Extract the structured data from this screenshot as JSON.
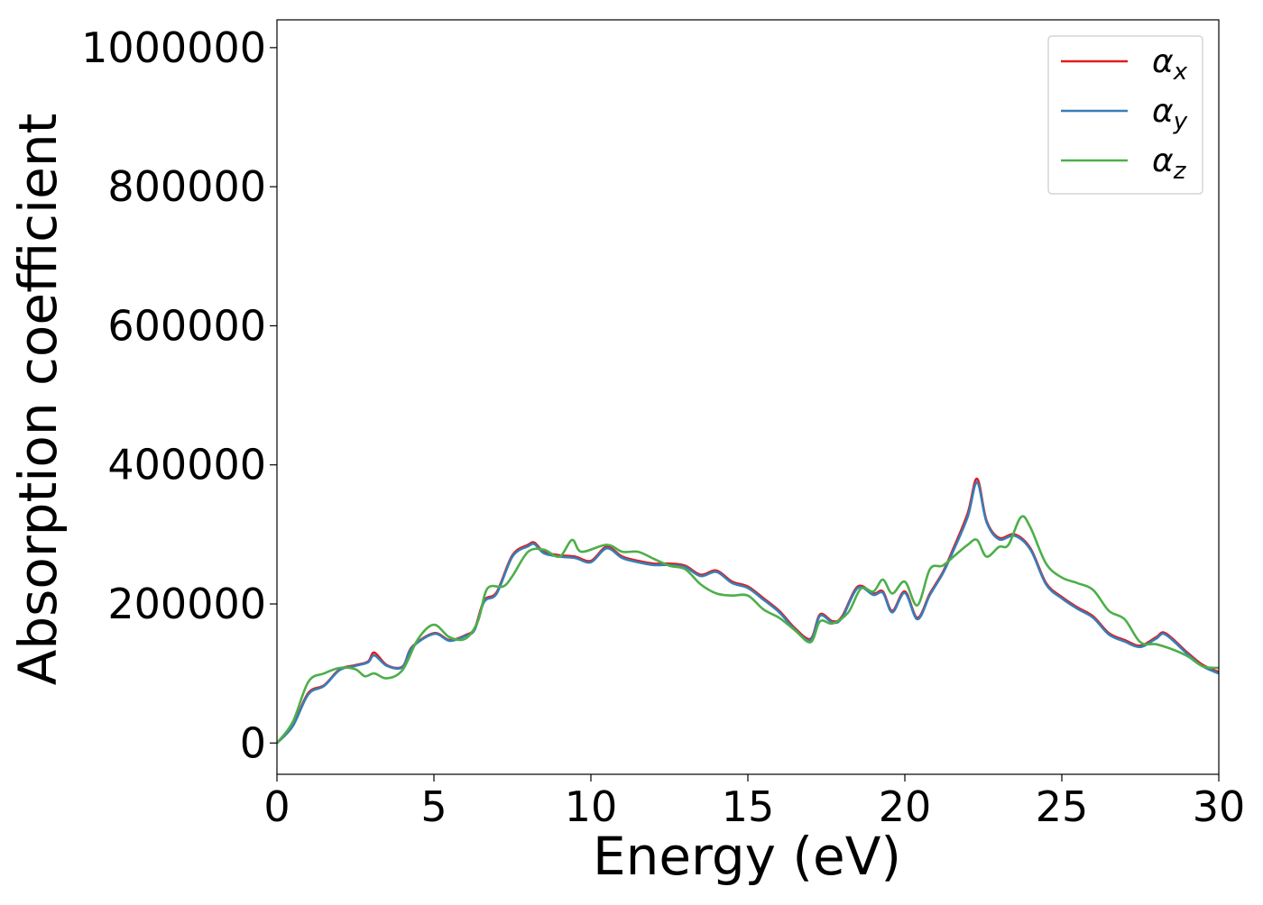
{
  "chart_data": {
    "type": "line",
    "title": "",
    "xlabel": "Energy (eV)",
    "ylabel": "Absorption coefficient",
    "xlim": [
      0,
      30
    ],
    "ylim": [
      -45000,
      1040000
    ],
    "xticks": [
      0,
      5,
      10,
      15,
      20,
      25,
      30
    ],
    "yticks": [
      0,
      200000,
      400000,
      600000,
      800000,
      1000000
    ],
    "xtick_labels": [
      "0",
      "5",
      "10",
      "15",
      "20",
      "25",
      "30"
    ],
    "ytick_labels": [
      "0",
      "200000",
      "400000",
      "600000",
      "800000",
      "1000000"
    ],
    "grid": false,
    "legend_position": "top-right",
    "series": [
      {
        "name": "αx",
        "legend_base": "α",
        "legend_sub": "x",
        "color": "#e41a1c",
        "points": [
          [
            0,
            0
          ],
          [
            0.5,
            25000
          ],
          [
            1,
            72000
          ],
          [
            1.5,
            83000
          ],
          [
            2,
            106000
          ],
          [
            2.5,
            112000
          ],
          [
            2.9,
            117000
          ],
          [
            3.1,
            130000
          ],
          [
            3.5,
            112000
          ],
          [
            4,
            110000
          ],
          [
            4.3,
            138000
          ],
          [
            5,
            158000
          ],
          [
            5.5,
            148000
          ],
          [
            6,
            155000
          ],
          [
            6.3,
            165000
          ],
          [
            6.6,
            205000
          ],
          [
            7,
            217000
          ],
          [
            7.5,
            270000
          ],
          [
            8,
            285000
          ],
          [
            8.2,
            288000
          ],
          [
            8.5,
            275000
          ],
          [
            9,
            270000
          ],
          [
            9.5,
            268000
          ],
          [
            10,
            262000
          ],
          [
            10.5,
            282000
          ],
          [
            11,
            268000
          ],
          [
            11.5,
            262000
          ],
          [
            12,
            258000
          ],
          [
            12.5,
            258000
          ],
          [
            13,
            255000
          ],
          [
            13.5,
            242000
          ],
          [
            14,
            248000
          ],
          [
            14.5,
            232000
          ],
          [
            15,
            225000
          ],
          [
            15.5,
            208000
          ],
          [
            16,
            190000
          ],
          [
            16.5,
            165000
          ],
          [
            17,
            150000
          ],
          [
            17.3,
            185000
          ],
          [
            17.7,
            175000
          ],
          [
            18,
            182000
          ],
          [
            18.5,
            225000
          ],
          [
            19,
            215000
          ],
          [
            19.3,
            218000
          ],
          [
            19.6,
            190000
          ],
          [
            20,
            218000
          ],
          [
            20.4,
            180000
          ],
          [
            20.8,
            215000
          ],
          [
            21.2,
            245000
          ],
          [
            21.5,
            275000
          ],
          [
            22,
            330000
          ],
          [
            22.3,
            380000
          ],
          [
            22.6,
            320000
          ],
          [
            23,
            295000
          ],
          [
            23.5,
            300000
          ],
          [
            24,
            280000
          ],
          [
            24.5,
            230000
          ],
          [
            25,
            210000
          ],
          [
            25.5,
            195000
          ],
          [
            26,
            182000
          ],
          [
            26.5,
            158000
          ],
          [
            27,
            148000
          ],
          [
            27.5,
            140000
          ],
          [
            28,
            152000
          ],
          [
            28.3,
            158000
          ],
          [
            29,
            130000
          ],
          [
            29.5,
            112000
          ],
          [
            30,
            102000
          ]
        ]
      },
      {
        "name": "αy",
        "legend_base": "α",
        "legend_sub": "y",
        "color": "#377eb8",
        "points": [
          [
            0,
            0
          ],
          [
            0.5,
            24000
          ],
          [
            1,
            70000
          ],
          [
            1.5,
            82000
          ],
          [
            2,
            105000
          ],
          [
            2.5,
            111000
          ],
          [
            2.9,
            116000
          ],
          [
            3.1,
            126000
          ],
          [
            3.5,
            111000
          ],
          [
            4,
            109000
          ],
          [
            4.3,
            137000
          ],
          [
            5,
            157000
          ],
          [
            5.5,
            147000
          ],
          [
            6,
            154000
          ],
          [
            6.3,
            163000
          ],
          [
            6.6,
            203000
          ],
          [
            7,
            215000
          ],
          [
            7.5,
            268000
          ],
          [
            8,
            283000
          ],
          [
            8.2,
            286000
          ],
          [
            8.5,
            273000
          ],
          [
            9,
            268000
          ],
          [
            9.5,
            266000
          ],
          [
            10,
            260000
          ],
          [
            10.5,
            280000
          ],
          [
            11,
            266000
          ],
          [
            11.5,
            260000
          ],
          [
            12,
            256000
          ],
          [
            12.5,
            256000
          ],
          [
            13,
            253000
          ],
          [
            13.5,
            240000
          ],
          [
            14,
            246000
          ],
          [
            14.5,
            230000
          ],
          [
            15,
            223000
          ],
          [
            15.5,
            206000
          ],
          [
            16,
            188000
          ],
          [
            16.5,
            163000
          ],
          [
            17,
            148000
          ],
          [
            17.3,
            183000
          ],
          [
            17.7,
            173000
          ],
          [
            18,
            180000
          ],
          [
            18.5,
            223000
          ],
          [
            19,
            213000
          ],
          [
            19.3,
            216000
          ],
          [
            19.6,
            188000
          ],
          [
            20,
            216000
          ],
          [
            20.4,
            178000
          ],
          [
            20.8,
            213000
          ],
          [
            21.2,
            243000
          ],
          [
            21.5,
            272000
          ],
          [
            22,
            325000
          ],
          [
            22.3,
            375000
          ],
          [
            22.6,
            318000
          ],
          [
            23,
            293000
          ],
          [
            23.5,
            298000
          ],
          [
            24,
            278000
          ],
          [
            24.5,
            228000
          ],
          [
            25,
            208000
          ],
          [
            25.5,
            193000
          ],
          [
            26,
            180000
          ],
          [
            26.5,
            156000
          ],
          [
            27,
            146000
          ],
          [
            27.5,
            138000
          ],
          [
            28,
            150000
          ],
          [
            28.3,
            156000
          ],
          [
            29,
            128000
          ],
          [
            29.5,
            110000
          ],
          [
            30,
            100000
          ]
        ]
      },
      {
        "name": "αz",
        "legend_base": "α",
        "legend_sub": "z",
        "color": "#4daf4a",
        "points": [
          [
            0,
            0
          ],
          [
            0.5,
            30000
          ],
          [
            1,
            88000
          ],
          [
            1.5,
            100000
          ],
          [
            2,
            108000
          ],
          [
            2.5,
            106000
          ],
          [
            2.8,
            96000
          ],
          [
            3.1,
            100000
          ],
          [
            3.5,
            93000
          ],
          [
            4,
            105000
          ],
          [
            4.5,
            150000
          ],
          [
            5,
            170000
          ],
          [
            5.5,
            152000
          ],
          [
            6,
            150000
          ],
          [
            6.4,
            175000
          ],
          [
            6.7,
            222000
          ],
          [
            7.2,
            225000
          ],
          [
            7.5,
            240000
          ],
          [
            8,
            275000
          ],
          [
            8.5,
            278000
          ],
          [
            9,
            268000
          ],
          [
            9.4,
            292000
          ],
          [
            9.7,
            275000
          ],
          [
            10.5,
            285000
          ],
          [
            11,
            275000
          ],
          [
            11.5,
            275000
          ],
          [
            12,
            265000
          ],
          [
            12.5,
            255000
          ],
          [
            13,
            250000
          ],
          [
            13.5,
            228000
          ],
          [
            14,
            215000
          ],
          [
            14.5,
            212000
          ],
          [
            15,
            212000
          ],
          [
            15.5,
            192000
          ],
          [
            16,
            180000
          ],
          [
            16.5,
            162000
          ],
          [
            17,
            145000
          ],
          [
            17.3,
            175000
          ],
          [
            17.7,
            172000
          ],
          [
            18.2,
            188000
          ],
          [
            18.6,
            222000
          ],
          [
            19,
            218000
          ],
          [
            19.3,
            235000
          ],
          [
            19.6,
            215000
          ],
          [
            20,
            232000
          ],
          [
            20.4,
            198000
          ],
          [
            20.8,
            250000
          ],
          [
            21.2,
            255000
          ],
          [
            21.6,
            270000
          ],
          [
            22,
            285000
          ],
          [
            22.3,
            292000
          ],
          [
            22.6,
            268000
          ],
          [
            23,
            282000
          ],
          [
            23.3,
            285000
          ],
          [
            23.7,
            325000
          ],
          [
            24,
            310000
          ],
          [
            24.5,
            258000
          ],
          [
            25,
            238000
          ],
          [
            25.5,
            230000
          ],
          [
            26,
            220000
          ],
          [
            26.5,
            190000
          ],
          [
            27,
            178000
          ],
          [
            27.5,
            145000
          ],
          [
            28,
            142000
          ],
          [
            28.5,
            135000
          ],
          [
            29,
            125000
          ],
          [
            29.5,
            110000
          ],
          [
            30,
            108000
          ]
        ]
      }
    ]
  }
}
